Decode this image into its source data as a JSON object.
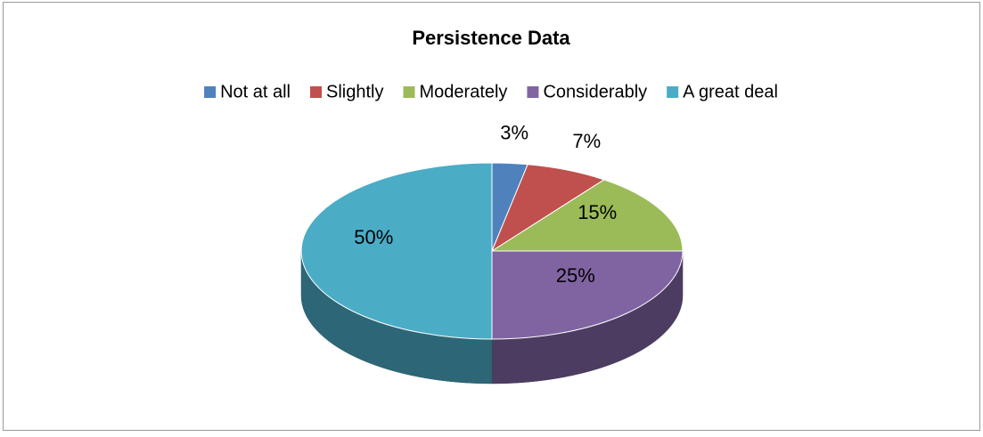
{
  "chart_data": {
    "type": "pie",
    "title": "Persistence Data",
    "categories": [
      "Not at all",
      "Slightly",
      "Moderately",
      "Considerably",
      "A great deal"
    ],
    "values": [
      3,
      7,
      15,
      25,
      50
    ],
    "value_labels": [
      "3%",
      "7%",
      "15%",
      "25%",
      "50%"
    ],
    "colors": [
      "#4f81bd",
      "#c0504d",
      "#9bbb59",
      "#8064a2",
      "#4bacc6"
    ],
    "legend": "top"
  }
}
